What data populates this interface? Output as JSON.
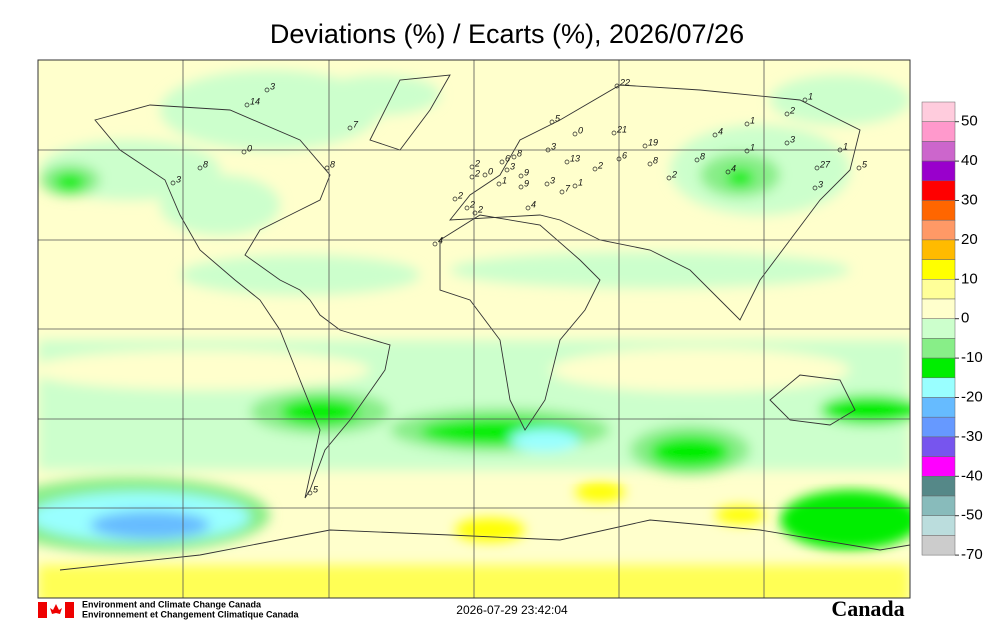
{
  "header": {
    "title": "Deviations (%) / Ecarts (%), 2026/07/26"
  },
  "colorbar": {
    "colors": [
      "#ffccdd",
      "#ff99cc",
      "#cc66cc",
      "#9900cc",
      "#ff0000",
      "#ff6600",
      "#ff9966",
      "#ffbb00",
      "#ffff00",
      "#ffff99",
      "#ffffcc",
      "#ccffcc",
      "#88ee88",
      "#00ee00",
      "#99ffff",
      "#66bbff",
      "#6699ff",
      "#7755ee",
      "#ff00ff",
      "#558888",
      "#88bbbb",
      "#bbdddd",
      "#cccccc"
    ],
    "ticks": [
      50,
      40,
      30,
      20,
      10,
      0,
      -10,
      -20,
      -30,
      -40,
      -50,
      -70
    ]
  },
  "stations": [
    3,
    14,
    7,
    0,
    8,
    3,
    8,
    4,
    22,
    5,
    0,
    21,
    3,
    13,
    2,
    6,
    19,
    8,
    2,
    8,
    4,
    1,
    1,
    3,
    2,
    1,
    1,
    27,
    5,
    4,
    2,
    2,
    0,
    6,
    3,
    9,
    1,
    9,
    3,
    7,
    1,
    4,
    2,
    2,
    2,
    5,
    3,
    8
  ],
  "footer": {
    "agency_en": "Environment and Climate Change Canada",
    "agency_fr": "Environnement et Changement Climatique Canada",
    "timestamp": "2026-07-29 23:42:04",
    "wordmark": "Canada"
  }
}
